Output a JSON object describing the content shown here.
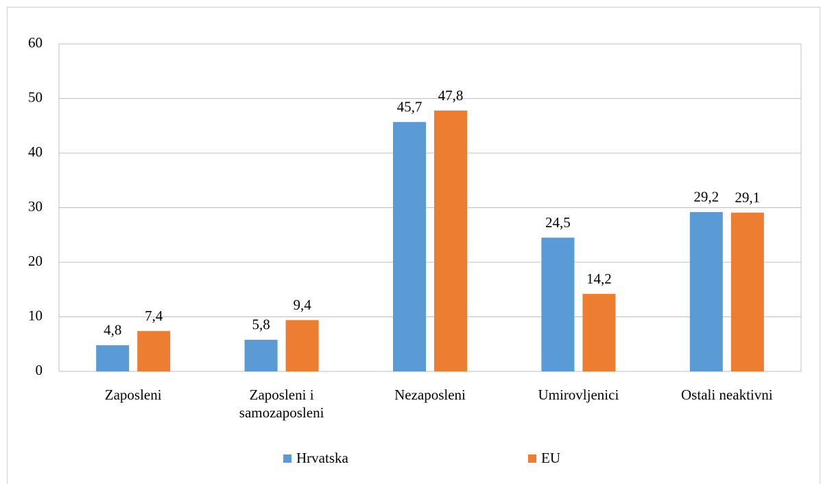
{
  "chart_data": {
    "type": "bar",
    "categories": [
      "Zaposleni",
      "Zaposleni i samozaposleni",
      "Nezaposleni",
      "Umirovljenici",
      "Ostali neaktivni"
    ],
    "series": [
      {
        "name": "Hrvatska",
        "color": "#5b9bd5",
        "values": [
          4.8,
          5.8,
          45.7,
          24.5,
          29.2
        ],
        "value_labels": [
          "4,8",
          "5,8",
          "45,7",
          "24,5",
          "29,2"
        ]
      },
      {
        "name": "EU",
        "color": "#ed7d31",
        "values": [
          7.4,
          9.4,
          47.8,
          14.2,
          29.1
        ],
        "value_labels": [
          "7,4",
          "9,4",
          "47,8",
          "14,2",
          "29,1"
        ]
      }
    ],
    "ylim": [
      0,
      60
    ],
    "yticks": [
      0,
      10,
      20,
      30,
      40,
      50,
      60
    ],
    "grid": true,
    "legend": "bottom"
  }
}
